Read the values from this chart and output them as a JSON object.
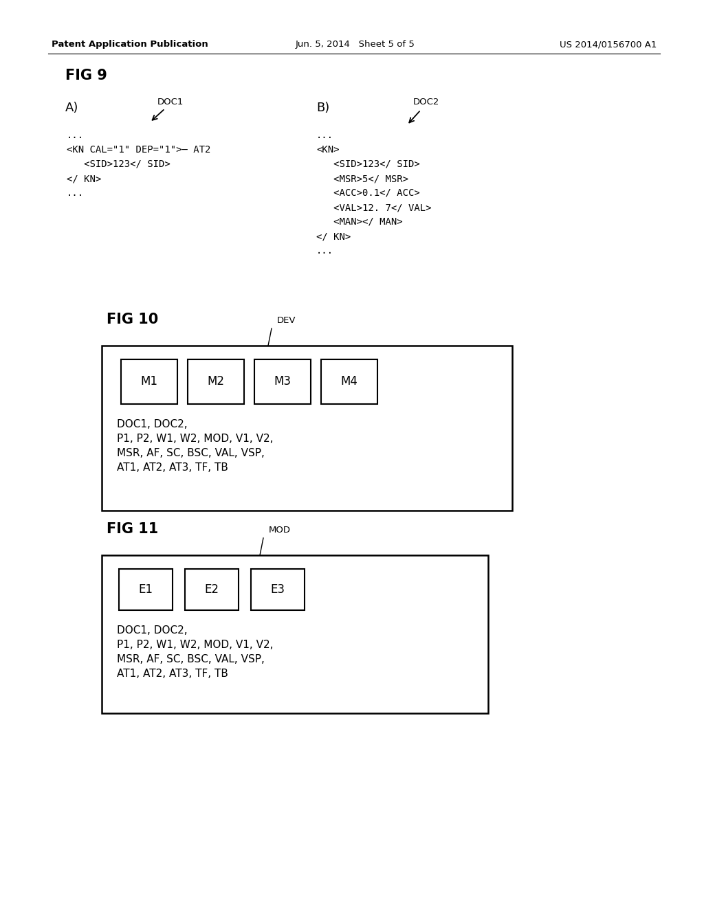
{
  "background_color": "#ffffff",
  "header_left": "Patent Application Publication",
  "header_center": "Jun. 5, 2014   Sheet 5 of 5",
  "header_right": "US 2014/0156700 A1",
  "header_fontsize": 9.5,
  "fig9_label": "FIG 9",
  "fig9_A_label": "A)",
  "fig9_B_label": "B)",
  "fig9_DOC1_label": "DOC1",
  "fig9_DOC2_label": "DOC2",
  "fig9_A_lines": [
    "...",
    "<KN CAL=\"1\" DEP=\"1\">— AT2",
    "   <SID>123</ SID>",
    "</ KN>",
    "..."
  ],
  "fig9_B_lines": [
    "...",
    "<KN>",
    "   <SID>123</ SID>",
    "   <MSR>5</ MSR>",
    "   <ACC>0.1</ ACC>",
    "   <VAL>12. 7</ VAL>",
    "   <MAN></ MAN>",
    "</ KN>",
    "..."
  ],
  "fig10_label": "FIG 10",
  "fig10_DEV_label": "DEV",
  "fig10_modules": [
    "M1",
    "M2",
    "M3",
    "M4"
  ],
  "fig10_text_lines": [
    "DOC1, DOC2,",
    "P1, P2, W1, W2, MOD, V1, V2,",
    "MSR, AF, SC, BSC, VAL, VSP,",
    "AT1, AT2, AT3, TF, TB"
  ],
  "fig11_label": "FIG 11",
  "fig11_MOD_label": "MOD",
  "fig11_modules": [
    "E1",
    "E2",
    "E3"
  ],
  "fig11_text_lines": [
    "DOC1, DOC2,",
    "P1, P2, W1, W2, MOD, V1, V2,",
    "MSR, AF, SC, BSC, VAL, VSP,",
    "AT1, AT2, AT3, TF, TB"
  ],
  "text_color": "#000000",
  "fig_label_fontsize": 15,
  "section_label_fontsize": 13,
  "code_fontsize": 10,
  "module_fontsize": 12,
  "content_fontsize": 11
}
